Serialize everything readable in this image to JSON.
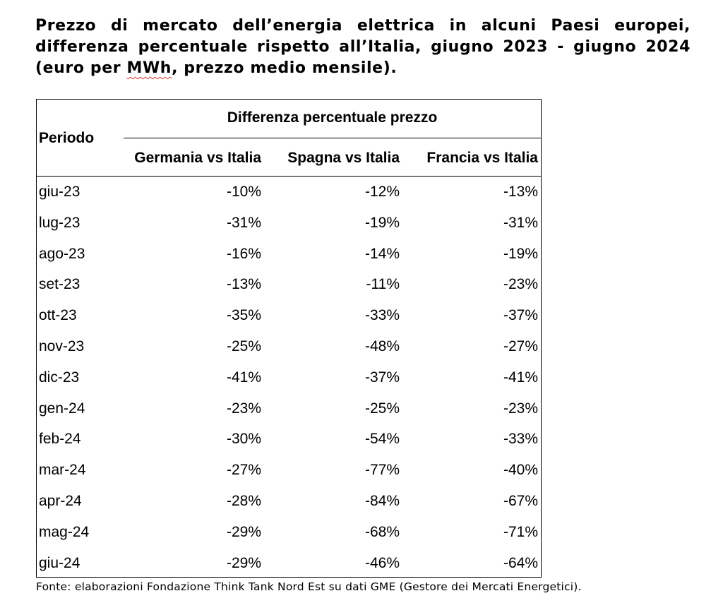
{
  "title": {
    "line1": "Prezzo di mercato dell’energia elettrica in alcuni Paesi europei,",
    "line2": "differenza percentuale rispetto all’Italia, giugno 2023 - giugno 2024",
    "line3_prefix": "(euro per ",
    "line3_word": "MWh",
    "line3_suffix": ", prezzo medio mensile)."
  },
  "table": {
    "period_header": "Periodo",
    "group_header": "Differenza percentuale prezzo",
    "columns": [
      "Germania vs Italia",
      "Spagna vs Italia",
      "Francia vs Italia"
    ],
    "rows": [
      {
        "period": "giu-23",
        "de": "-10%",
        "es": "-12%",
        "fr": "-13%"
      },
      {
        "period": "lug-23",
        "de": "-31%",
        "es": "-19%",
        "fr": "-31%"
      },
      {
        "period": "ago-23",
        "de": "-16%",
        "es": "-14%",
        "fr": "-19%"
      },
      {
        "period": "set-23",
        "de": "-13%",
        "es": "-11%",
        "fr": "-23%"
      },
      {
        "period": "ott-23",
        "de": "-35%",
        "es": "-33%",
        "fr": "-37%"
      },
      {
        "period": "nov-23",
        "de": "-25%",
        "es": "-48%",
        "fr": "-27%"
      },
      {
        "period": "dic-23",
        "de": "-41%",
        "es": "-37%",
        "fr": "-41%"
      },
      {
        "period": "gen-24",
        "de": "-23%",
        "es": "-25%",
        "fr": "-23%"
      },
      {
        "period": "feb-24",
        "de": "-30%",
        "es": "-54%",
        "fr": "-33%"
      },
      {
        "period": "mar-24",
        "de": "-27%",
        "es": "-77%",
        "fr": "-40%"
      },
      {
        "period": "apr-24",
        "de": "-28%",
        "es": "-84%",
        "fr": "-67%"
      },
      {
        "period": "mag-24",
        "de": "-29%",
        "es": "-68%",
        "fr": "-71%"
      },
      {
        "period": "giu-24",
        "de": "-29%",
        "es": "-46%",
        "fr": "-64%"
      }
    ]
  },
  "source": "Fonte: elaborazioni Fondazione Think Tank Nord Est su dati GME (Gestore dei Mercati Energetici)."
}
